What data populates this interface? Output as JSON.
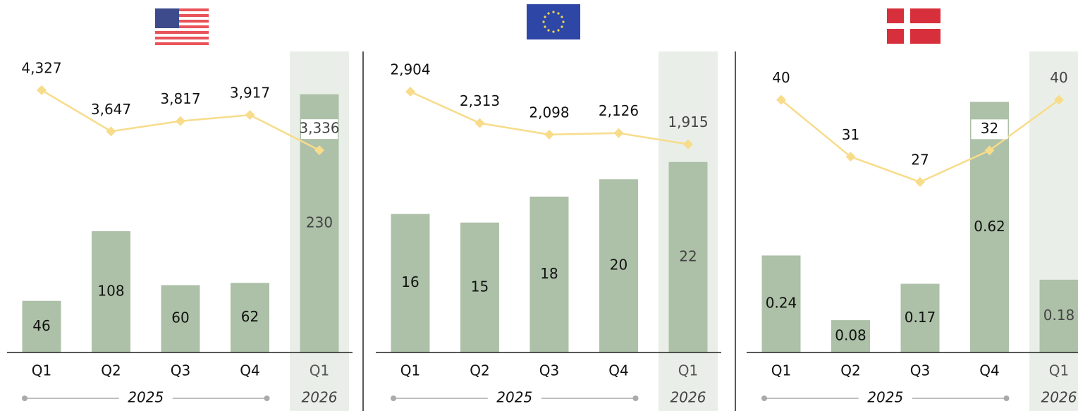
{
  "chart_data": [
    {
      "type": "bar_line",
      "categories": [
        "Q1",
        "Q2",
        "Q3",
        "Q4",
        "Q1"
      ],
      "periods": [
        "2025",
        "2026"
      ],
      "values": [
        46,
        108,
        60,
        62,
        230
      ],
      "color": "#adc0a8",
      "ylim": [
        0,
        270
      ],
      "line_values": [
        4327,
        3647,
        3817,
        3917,
        3336
      ],
      "line_value_labels": [
        "4,327",
        "3,647",
        "3,817",
        "3,917",
        "3,336"
      ],
      "line_color": "#f7dc8a",
      "y2lim": [
        0,
        5000
      ]
    },
    {
      "type": "bar_line",
      "categories": [
        "Q1",
        "Q2",
        "Q3",
        "Q4",
        "Q1"
      ],
      "periods": [
        "2025",
        "2026"
      ],
      "values": [
        16,
        15,
        18,
        20,
        22
      ],
      "color": "#adc0a8",
      "ylim": [
        0,
        35
      ],
      "line_values": [
        2904,
        2313,
        2098,
        2126,
        1915
      ],
      "line_value_labels": [
        "2,904",
        "2,313",
        "2,098",
        "2,126",
        "1,915"
      ],
      "line_color": "#f7dc8a",
      "y2lim": [
        -2000,
        3700
      ]
    },
    {
      "type": "bar_line",
      "categories": [
        "Q1",
        "Q2",
        "Q3",
        "Q4",
        "Q1"
      ],
      "periods": [
        "2025",
        "2026"
      ],
      "values": [
        0.24,
        0.08,
        0.17,
        0.62,
        0.18
      ],
      "color": "#adc0a8",
      "ylim": [
        0,
        0.75
      ],
      "line_values": [
        40,
        31,
        27,
        32,
        40
      ],
      "line_color": "#f7dc8a",
      "y2lim": [
        0,
        48
      ]
    }
  ]
}
